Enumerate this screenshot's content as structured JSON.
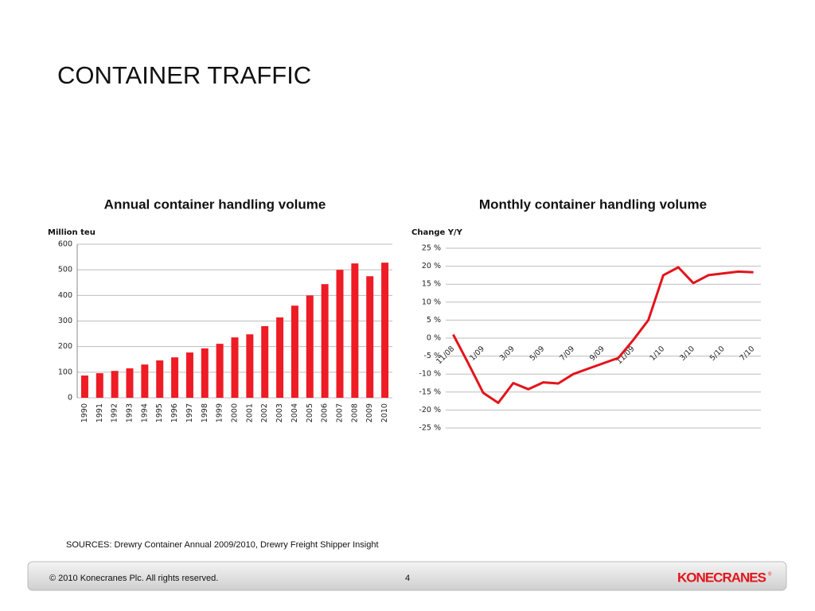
{
  "slide": {
    "title": "CONTAINER TRAFFIC",
    "sources": "SOURCES: Drewry Container Annual 2009/2010, Drewry Freight Shipper Insight",
    "footer": "© 2010 Konecranes Plc. All rights reserved.",
    "page_number": "4",
    "logo": "KONECRANES"
  },
  "chart_data": [
    {
      "type": "bar",
      "title": "Annual container handling volume",
      "y_label": "Million teu",
      "categories": [
        "1990",
        "1991",
        "1992",
        "1993",
        "1994",
        "1995",
        "1996",
        "1997",
        "1998",
        "1999",
        "2000",
        "2001",
        "2002",
        "2003",
        "2004",
        "2005",
        "2006",
        "2007",
        "2008",
        "2009",
        "2010"
      ],
      "values": [
        87,
        96,
        105,
        115,
        130,
        146,
        158,
        177,
        193,
        211,
        236,
        248,
        280,
        314,
        360,
        400,
        444,
        500,
        525,
        475,
        528
      ],
      "color": "#ee1c25",
      "ylim": [
        0,
        600
      ],
      "yticks": [
        0,
        100,
        200,
        300,
        400,
        500,
        600
      ],
      "grid": true
    },
    {
      "type": "line",
      "title": "Monthly container handling volume",
      "y_label": "Change Y/Y",
      "categories": [
        "11/08",
        null,
        "1/09",
        null,
        "3/09",
        null,
        "5/09",
        null,
        "7/09",
        null,
        "9/09",
        null,
        "11/09",
        null,
        "1/10",
        null,
        "3/10",
        null,
        "5/10",
        null,
        "7/10"
      ],
      "values": [
        1,
        -7,
        -15.2,
        -18,
        -12.5,
        -14.2,
        -12.3,
        -12.6,
        -10,
        -8.5,
        -7,
        -5.5,
        -0.5,
        5,
        17.5,
        19.7,
        15.3,
        17.5,
        18,
        18.5,
        18.3
      ],
      "color": "#e3141b",
      "ylim": [
        -25,
        25
      ],
      "yticks": [
        {
          "value": -25,
          "label": "-25 %"
        },
        {
          "value": -20,
          "label": "-20 %"
        },
        {
          "value": -15,
          "label": "-15 %"
        },
        {
          "value": -10,
          "label": "-10 %"
        },
        {
          "value": -5,
          "label": "-5 %"
        },
        {
          "value": 0,
          "label": "0 %"
        },
        {
          "value": 5,
          "label": "5 %"
        },
        {
          "value": 10,
          "label": "10 %"
        },
        {
          "value": 15,
          "label": "15 %"
        },
        {
          "value": 20,
          "label": "20 %"
        },
        {
          "value": 25,
          "label": "25 %"
        }
      ],
      "grid": true
    }
  ]
}
